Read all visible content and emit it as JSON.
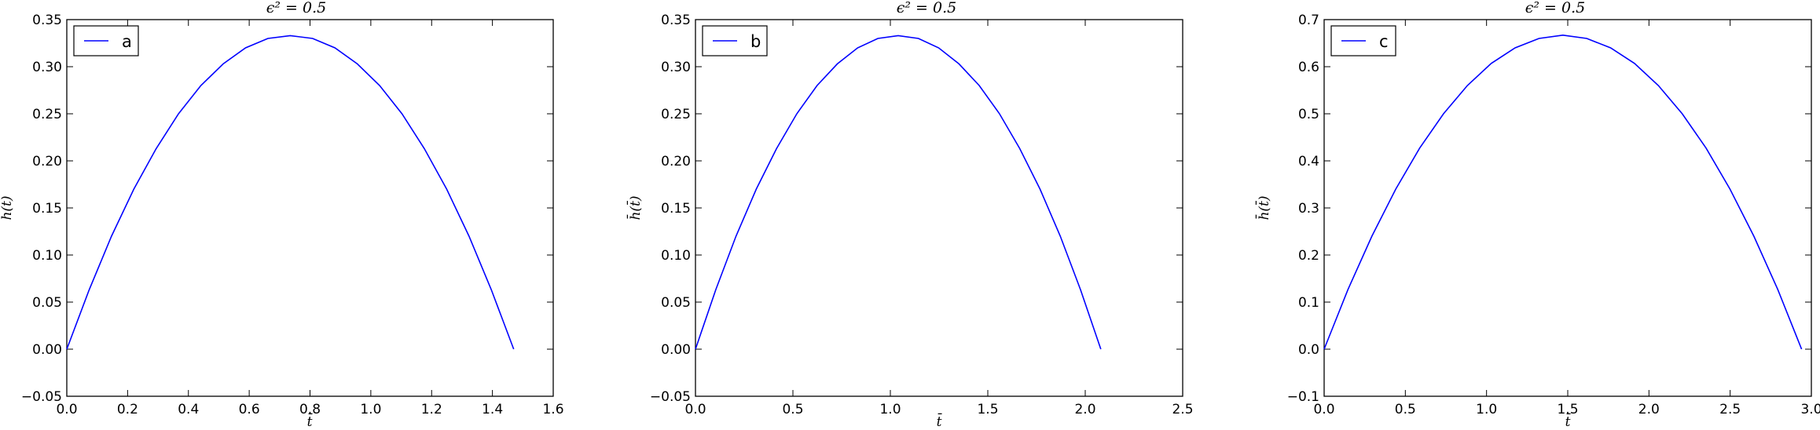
{
  "chart_data": [
    {
      "type": "line",
      "title": "ϵ² = 0.5",
      "xlabel": "t̄",
      "ylabel": "h̄(t̄)",
      "xlim": [
        0.0,
        1.6
      ],
      "ylim": [
        -0.05,
        0.35
      ],
      "xticks": [
        "0.0",
        "0.2",
        "0.4",
        "0.6",
        "0.8",
        "1.0",
        "1.2",
        "1.4",
        "1.6"
      ],
      "yticks": [
        "−0.05",
        "0.00",
        "0.05",
        "0.10",
        "0.15",
        "0.20",
        "0.25",
        "0.30",
        "0.35"
      ],
      "legend": "top-left",
      "grid": false,
      "series": [
        {
          "name": "a",
          "color": "#0000ff",
          "x": [
            0.0,
            0.0735,
            0.147,
            0.2205,
            0.294,
            0.3675,
            0.441,
            0.5145,
            0.588,
            0.6615,
            0.735,
            0.8085,
            0.882,
            0.9555,
            1.029,
            1.1025,
            1.176,
            1.2495,
            1.323,
            1.3965,
            1.47
          ],
          "y": [
            0.0,
            0.063,
            0.12,
            0.17,
            0.213,
            0.25,
            0.28,
            0.303,
            0.32,
            0.33,
            0.333,
            0.33,
            0.32,
            0.303,
            0.28,
            0.25,
            0.213,
            0.17,
            0.12,
            0.063,
            0.0
          ]
        }
      ]
    },
    {
      "type": "line",
      "title": "ϵ² = 0.5",
      "xlabel": "t̄",
      "ylabel": "h̄(t̄)",
      "xlim": [
        0.0,
        2.5
      ],
      "ylim": [
        -0.05,
        0.35
      ],
      "xticks": [
        "0.0",
        "0.5",
        "1.0",
        "1.5",
        "2.0",
        "2.5"
      ],
      "yticks": [
        "−0.05",
        "0.00",
        "0.05",
        "0.10",
        "0.15",
        "0.20",
        "0.25",
        "0.30",
        "0.35"
      ],
      "legend": "top-left",
      "grid": false,
      "series": [
        {
          "name": "b",
          "color": "#0000ff",
          "x": [
            0.0,
            0.104,
            0.208,
            0.312,
            0.416,
            0.52,
            0.624,
            0.728,
            0.832,
            0.936,
            1.04,
            1.144,
            1.248,
            1.352,
            1.456,
            1.56,
            1.664,
            1.768,
            1.872,
            1.976,
            2.08
          ],
          "y": [
            0.0,
            0.063,
            0.12,
            0.17,
            0.213,
            0.25,
            0.28,
            0.303,
            0.32,
            0.33,
            0.333,
            0.33,
            0.32,
            0.303,
            0.28,
            0.25,
            0.213,
            0.17,
            0.12,
            0.063,
            0.0
          ]
        }
      ]
    },
    {
      "type": "line",
      "title": "ϵ² = 0.5",
      "xlabel": "t̄",
      "ylabel": "h̄(t̄)",
      "xlim": [
        0.0,
        3.0
      ],
      "ylim": [
        -0.1,
        0.7
      ],
      "xticks": [
        "0.0",
        "0.5",
        "1.0",
        "1.5",
        "2.0",
        "2.5",
        "3.0"
      ],
      "yticks": [
        "−0.1",
        "0.0",
        "0.1",
        "0.2",
        "0.3",
        "0.4",
        "0.5",
        "0.6",
        "0.7"
      ],
      "legend": "top-left",
      "grid": false,
      "series": [
        {
          "name": "c",
          "color": "#0000ff",
          "x": [
            0.0,
            0.147,
            0.294,
            0.441,
            0.588,
            0.735,
            0.882,
            1.029,
            1.176,
            1.323,
            1.47,
            1.617,
            1.764,
            1.911,
            2.058,
            2.205,
            2.352,
            2.499,
            2.646,
            2.793,
            2.94
          ],
          "y": [
            0.0,
            0.127,
            0.24,
            0.34,
            0.427,
            0.5,
            0.56,
            0.607,
            0.64,
            0.66,
            0.667,
            0.66,
            0.64,
            0.607,
            0.56,
            0.5,
            0.427,
            0.34,
            0.24,
            0.127,
            0.0
          ]
        }
      ]
    }
  ]
}
